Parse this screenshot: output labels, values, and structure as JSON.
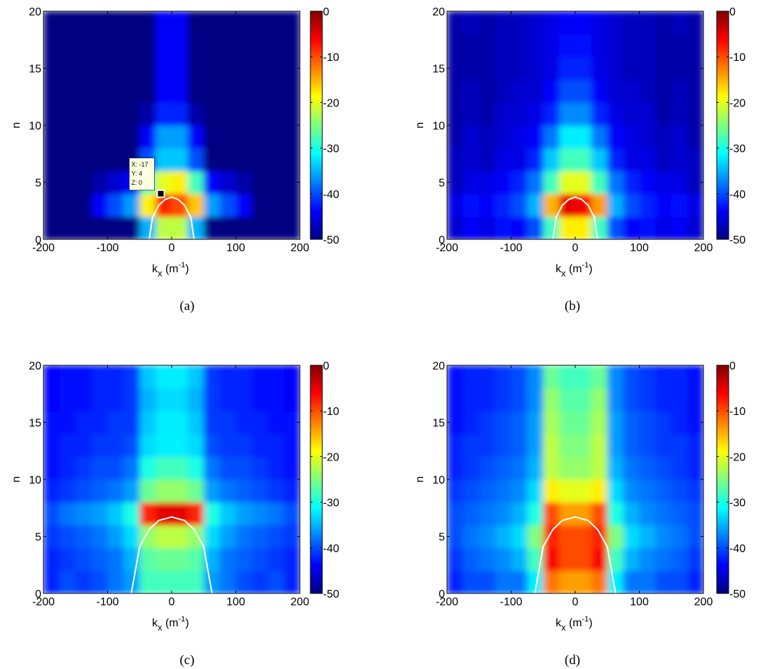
{
  "chart_data": [
    {
      "type": "heatmap",
      "caption": "(a)",
      "ylabel": "n",
      "xlabel": {
        "base": "k",
        "sub": "x",
        "open": " (m",
        "sup": "-1",
        "close": ")"
      },
      "xlim": [
        -200,
        200
      ],
      "ylim": [
        0,
        20
      ],
      "xticks": [
        -200,
        -100,
        0,
        100,
        200
      ],
      "yticks": [
        0,
        5,
        10,
        15,
        20
      ],
      "zlim": [
        -50,
        0
      ],
      "zticks": [
        0,
        -10,
        -20,
        -30,
        -40,
        -50
      ],
      "colormap": "jet",
      "x_edges": [
        -200,
        -175,
        -150,
        -125,
        -100,
        -75,
        -50,
        -25,
        0,
        25,
        50,
        75,
        100,
        125,
        150,
        175,
        200
      ],
      "y_edges": [
        0,
        2,
        4,
        6,
        8,
        10,
        12,
        14,
        16,
        18,
        20
      ],
      "z": [
        [
          -50,
          -50,
          -50,
          -50,
          -50,
          -50,
          -35,
          -22,
          -22,
          -35,
          -50,
          -50,
          -50,
          -50,
          -50,
          -50
        ],
        [
          -50,
          -50,
          -50,
          -44,
          -40,
          -36,
          -18,
          -8,
          -10,
          -16,
          -36,
          -40,
          -44,
          -50,
          -50,
          -50
        ],
        [
          -50,
          -50,
          -50,
          -48,
          -46,
          -44,
          -28,
          -20,
          -18,
          -28,
          -44,
          -46,
          -48,
          -50,
          -50,
          -50
        ],
        [
          -50,
          -50,
          -50,
          -50,
          -50,
          -50,
          -40,
          -34,
          -34,
          -40,
          -50,
          -50,
          -50,
          -50,
          -50,
          -50
        ],
        [
          -50,
          -50,
          -50,
          -50,
          -50,
          -50,
          -44,
          -36,
          -36,
          -44,
          -50,
          -50,
          -50,
          -50,
          -50,
          -50
        ],
        [
          -50,
          -50,
          -50,
          -50,
          -50,
          -50,
          -48,
          -42,
          -42,
          -48,
          -50,
          -50,
          -50,
          -50,
          -50,
          -50
        ],
        [
          -50,
          -50,
          -50,
          -50,
          -50,
          -50,
          -50,
          -44,
          -44,
          -50,
          -50,
          -50,
          -50,
          -50,
          -50,
          -50
        ],
        [
          -50,
          -50,
          -50,
          -50,
          -50,
          -50,
          -50,
          -44,
          -44,
          -50,
          -50,
          -50,
          -50,
          -50,
          -50,
          -50
        ],
        [
          -50,
          -50,
          -50,
          -50,
          -50,
          -50,
          -50,
          -44,
          -44,
          -50,
          -50,
          -50,
          -50,
          -50,
          -50,
          -50
        ],
        [
          -50,
          -50,
          -50,
          -50,
          -50,
          -50,
          -50,
          -44,
          -44,
          -50,
          -50,
          -50,
          -50,
          -50,
          -50,
          -50
        ]
      ],
      "curve": {
        "color": "#ffffff",
        "x": [
          -35,
          -30,
          -20,
          -10,
          0,
          10,
          20,
          30,
          35
        ],
        "y": [
          0,
          1.9,
          3.0,
          3.5,
          3.7,
          3.5,
          3.0,
          1.9,
          0
        ]
      },
      "datatip": {
        "x": -17,
        "y": 4,
        "lines": [
          "X: -17",
          "Y: 4",
          "Z: 0"
        ]
      }
    },
    {
      "type": "heatmap",
      "caption": "(b)",
      "ylabel": "n",
      "xlabel": {
        "base": "k",
        "sub": "x",
        "open": " (m",
        "sup": "-1",
        "close": ")"
      },
      "xlim": [
        -200,
        200
      ],
      "ylim": [
        0,
        20
      ],
      "xticks": [
        -200,
        -100,
        0,
        100,
        200
      ],
      "yticks": [
        0,
        5,
        10,
        15,
        20
      ],
      "zlim": [
        -50,
        0
      ],
      "zticks": [
        0,
        -10,
        -20,
        -30,
        -40,
        -50
      ],
      "colormap": "jet",
      "x_edges": [
        -200,
        -175,
        -150,
        -125,
        -100,
        -75,
        -50,
        -25,
        0,
        25,
        50,
        75,
        100,
        125,
        150,
        175,
        200
      ],
      "y_edges": [
        0,
        2,
        4,
        6,
        8,
        10,
        12,
        14,
        16,
        18,
        20
      ],
      "z": [
        [
          -46,
          -44,
          -45,
          -43,
          -44,
          -40,
          -28,
          -18,
          -18,
          -28,
          -40,
          -44,
          -43,
          -45,
          -44,
          -46
        ],
        [
          -45,
          -43,
          -44,
          -42,
          -40,
          -35,
          -15,
          -5,
          -6,
          -14,
          -35,
          -40,
          -42,
          -44,
          -43,
          -45
        ],
        [
          -47,
          -45,
          -45,
          -44,
          -42,
          -38,
          -28,
          -20,
          -20,
          -28,
          -38,
          -42,
          -44,
          -45,
          -45,
          -47
        ],
        [
          -47,
          -46,
          -47,
          -45,
          -45,
          -42,
          -34,
          -28,
          -28,
          -34,
          -42,
          -45,
          -45,
          -47,
          -46,
          -47
        ],
        [
          -48,
          -46,
          -47,
          -46,
          -45,
          -44,
          -38,
          -32,
          -32,
          -38,
          -44,
          -45,
          -46,
          -47,
          -46,
          -48
        ],
        [
          -48,
          -47,
          -48,
          -46,
          -46,
          -45,
          -42,
          -37,
          -37,
          -42,
          -45,
          -46,
          -46,
          -48,
          -47,
          -48
        ],
        [
          -48,
          -47,
          -48,
          -47,
          -46,
          -46,
          -44,
          -40,
          -40,
          -44,
          -46,
          -46,
          -47,
          -48,
          -47,
          -48
        ],
        [
          -48,
          -48,
          -48,
          -47,
          -47,
          -46,
          -45,
          -42,
          -42,
          -45,
          -46,
          -47,
          -47,
          -48,
          -48,
          -48
        ],
        [
          -48,
          -48,
          -48,
          -47,
          -47,
          -46,
          -45,
          -43,
          -43,
          -45,
          -46,
          -47,
          -47,
          -48,
          -48,
          -48
        ],
        [
          -48,
          -47,
          -48,
          -47,
          -47,
          -46,
          -45,
          -44,
          -44,
          -45,
          -46,
          -47,
          -47,
          -48,
          -47,
          -48
        ]
      ],
      "curve": {
        "color": "#ffffff",
        "x": [
          -35,
          -30,
          -20,
          -10,
          0,
          10,
          20,
          30,
          35
        ],
        "y": [
          0,
          1.9,
          3.0,
          3.5,
          3.7,
          3.5,
          3.0,
          1.9,
          0
        ]
      }
    },
    {
      "type": "heatmap",
      "caption": "(c)",
      "ylabel": "n",
      "xlabel": {
        "base": "k",
        "sub": "x",
        "open": " (m",
        "sup": "-1",
        "close": ")"
      },
      "xlim": [
        -200,
        200
      ],
      "ylim": [
        0,
        20
      ],
      "xticks": [
        -200,
        -100,
        0,
        100,
        200
      ],
      "yticks": [
        0,
        5,
        10,
        15,
        20
      ],
      "zlim": [
        -50,
        0
      ],
      "zticks": [
        0,
        -10,
        -20,
        -30,
        -40,
        -50
      ],
      "colormap": "jet",
      "x_edges": [
        -200,
        -175,
        -150,
        -125,
        -100,
        -75,
        -50,
        -25,
        0,
        25,
        50,
        75,
        100,
        125,
        150,
        175,
        200
      ],
      "y_edges": [
        0,
        2,
        4,
        6,
        8,
        10,
        12,
        14,
        16,
        18,
        20
      ],
      "z": [
        [
          -42,
          -40,
          -41,
          -40,
          -38,
          -36,
          -28,
          -28,
          -28,
          -28,
          -36,
          -38,
          -40,
          -41,
          -40,
          -42
        ],
        [
          -42,
          -41,
          -40,
          -39,
          -38,
          -35,
          -27,
          -26,
          -26,
          -27,
          -35,
          -38,
          -39,
          -40,
          -41,
          -42
        ],
        [
          -41,
          -40,
          -39,
          -38,
          -36,
          -33,
          -24,
          -22,
          -22,
          -24,
          -33,
          -36,
          -38,
          -39,
          -40,
          -41
        ],
        [
          -40,
          -38,
          -37,
          -36,
          -34,
          -30,
          -8,
          -5,
          -5,
          -8,
          -30,
          -34,
          -36,
          -37,
          -38,
          -40
        ],
        [
          -42,
          -41,
          -40,
          -39,
          -38,
          -36,
          -26,
          -24,
          -24,
          -26,
          -36,
          -38,
          -39,
          -40,
          -41,
          -42
        ],
        [
          -43,
          -42,
          -41,
          -40,
          -40,
          -38,
          -30,
          -28,
          -28,
          -30,
          -38,
          -40,
          -40,
          -41,
          -42,
          -43
        ],
        [
          -43,
          -42,
          -42,
          -41,
          -41,
          -40,
          -33,
          -32,
          -32,
          -33,
          -40,
          -41,
          -41,
          -42,
          -42,
          -43
        ],
        [
          -43,
          -43,
          -42,
          -42,
          -41,
          -41,
          -34,
          -32,
          -32,
          -34,
          -41,
          -41,
          -42,
          -42,
          -43,
          -43
        ],
        [
          -44,
          -43,
          -43,
          -42,
          -42,
          -41,
          -35,
          -33,
          -33,
          -35,
          -41,
          -42,
          -42,
          -43,
          -43,
          -44
        ],
        [
          -44,
          -43,
          -43,
          -42,
          -42,
          -41,
          -34,
          -32,
          -32,
          -34,
          -41,
          -42,
          -42,
          -43,
          -43,
          -44
        ]
      ],
      "curve": {
        "color": "#ffffff",
        "x": [
          -63,
          -50,
          -35,
          -20,
          0,
          20,
          35,
          50,
          63
        ],
        "y": [
          0,
          4.1,
          5.6,
          6.4,
          6.7,
          6.4,
          5.6,
          4.1,
          0
        ]
      }
    },
    {
      "type": "heatmap",
      "caption": "(d)",
      "ylabel": "n",
      "xlabel": {
        "base": "k",
        "sub": "x",
        "open": " (m",
        "sup": "-1",
        "close": ")"
      },
      "xlim": [
        -200,
        200
      ],
      "ylim": [
        0,
        20
      ],
      "xticks": [
        -200,
        -100,
        0,
        100,
        200
      ],
      "yticks": [
        0,
        5,
        10,
        15,
        20
      ],
      "zlim": [
        -50,
        0
      ],
      "zticks": [
        0,
        -10,
        -20,
        -30,
        -40,
        -50
      ],
      "colormap": "jet",
      "x_edges": [
        -200,
        -175,
        -150,
        -125,
        -100,
        -75,
        -50,
        -25,
        0,
        25,
        50,
        75,
        100,
        125,
        150,
        175,
        200
      ],
      "y_edges": [
        0,
        2,
        4,
        6,
        8,
        10,
        12,
        14,
        16,
        18,
        20
      ],
      "z": [
        [
          -42,
          -40,
          -40,
          -38,
          -38,
          -32,
          -12,
          -14,
          -14,
          -12,
          -32,
          -38,
          -38,
          -40,
          -40,
          -42
        ],
        [
          -41,
          -39,
          -38,
          -37,
          -35,
          -28,
          -6,
          -10,
          -10,
          -6,
          -28,
          -35,
          -37,
          -38,
          -39,
          -41
        ],
        [
          -40,
          -38,
          -37,
          -35,
          -33,
          -25,
          -8,
          -10,
          -10,
          -8,
          -25,
          -33,
          -35,
          -37,
          -38,
          -40
        ],
        [
          -40,
          -39,
          -38,
          -37,
          -35,
          -30,
          -10,
          -14,
          -14,
          -10,
          -30,
          -35,
          -37,
          -38,
          -39,
          -40
        ],
        [
          -41,
          -40,
          -39,
          -38,
          -37,
          -33,
          -18,
          -20,
          -20,
          -18,
          -33,
          -37,
          -38,
          -39,
          -40,
          -41
        ],
        [
          -42,
          -41,
          -40,
          -39,
          -38,
          -35,
          -22,
          -24,
          -24,
          -22,
          -35,
          -38,
          -39,
          -40,
          -41,
          -42
        ],
        [
          -42,
          -41,
          -41,
          -40,
          -39,
          -36,
          -22,
          -25,
          -25,
          -22,
          -36,
          -39,
          -40,
          -41,
          -41,
          -42
        ],
        [
          -43,
          -42,
          -41,
          -40,
          -39,
          -36,
          -23,
          -26,
          -26,
          -23,
          -36,
          -39,
          -40,
          -41,
          -42,
          -43
        ],
        [
          -43,
          -42,
          -42,
          -41,
          -40,
          -37,
          -24,
          -27,
          -27,
          -24,
          -37,
          -40,
          -41,
          -42,
          -42,
          -43
        ],
        [
          -43,
          -42,
          -42,
          -41,
          -40,
          -37,
          -26,
          -28,
          -28,
          -26,
          -37,
          -40,
          -41,
          -42,
          -42,
          -43
        ]
      ],
      "curve": {
        "color": "#ffffff",
        "x": [
          -63,
          -50,
          -35,
          -20,
          0,
          20,
          35,
          50,
          63
        ],
        "y": [
          0,
          4.1,
          5.6,
          6.4,
          6.7,
          6.4,
          5.6,
          4.1,
          0
        ]
      }
    }
  ]
}
